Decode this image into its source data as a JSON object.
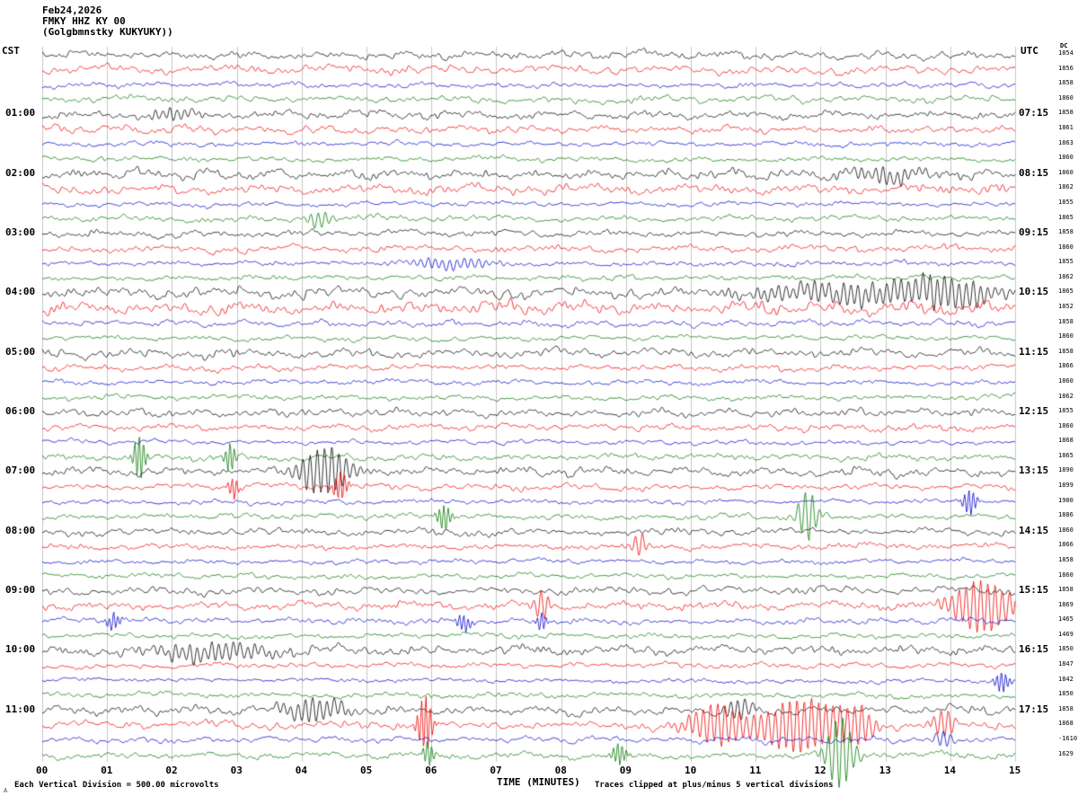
{
  "header": {
    "date": "Feb24,2026",
    "station": "FMKY HHZ KY 00",
    "location": "(Golgbmnstky KUKYUKY))"
  },
  "axis": {
    "left_timezone": "CST",
    "right_timezone": "UTC",
    "x_label": "TIME (MINUTES)",
    "x_ticks": [
      "00",
      "01",
      "02",
      "03",
      "04",
      "05",
      "06",
      "07",
      "08",
      "09",
      "10",
      "11",
      "12",
      "13",
      "14",
      "15"
    ],
    "dc_header": "DC"
  },
  "footer": {
    "scale_note": "Each Vertical Division =   500.00 microvolts",
    "clip_note": "Traces clipped at plus/minus 5 vertical divisions",
    "corner_mark": "A"
  },
  "chart_data": {
    "type": "line",
    "title": "FMKY HHZ KY 00 helicorder seismogram, Feb24,2026",
    "xlabel": "TIME (MINUTES)",
    "x_range": [
      0,
      15
    ],
    "rows": 48,
    "minutes_per_row": 15,
    "grid": "vertical gridline at every minute",
    "legend": "none",
    "trace_colors": [
      "#000000",
      "#ee0000",
      "#0000cc",
      "#007700"
    ],
    "clip_divisions": 5,
    "microvolts_per_division": 500.0,
    "left_labels": [
      {
        "row": 4,
        "label": "01:00"
      },
      {
        "row": 8,
        "label": "02:00"
      },
      {
        "row": 12,
        "label": "03:00"
      },
      {
        "row": 16,
        "label": "04:00"
      },
      {
        "row": 20,
        "label": "05:00"
      },
      {
        "row": 24,
        "label": "06:00"
      },
      {
        "row": 28,
        "label": "07:00"
      },
      {
        "row": 32,
        "label": "08:00"
      },
      {
        "row": 36,
        "label": "09:00"
      },
      {
        "row": 40,
        "label": "10:00"
      },
      {
        "row": 44,
        "label": "11:00"
      }
    ],
    "right_labels": [
      {
        "row": 4,
        "label": "07:15"
      },
      {
        "row": 8,
        "label": "08:15"
      },
      {
        "row": 12,
        "label": "09:15"
      },
      {
        "row": 16,
        "label": "10:15"
      },
      {
        "row": 20,
        "label": "11:15"
      },
      {
        "row": 24,
        "label": "12:15"
      },
      {
        "row": 28,
        "label": "13:15"
      },
      {
        "row": 32,
        "label": "14:15"
      },
      {
        "row": 36,
        "label": "15:15"
      },
      {
        "row": 40,
        "label": "16:15"
      },
      {
        "row": 44,
        "label": "17:15"
      }
    ],
    "dc_values": [
      "1854",
      "1856",
      "1858",
      "1860",
      "1858",
      "1861",
      "1863",
      "1860",
      "1860",
      "1862",
      "1855",
      "1865",
      "1858",
      "1860",
      "1855",
      "1862",
      "1865",
      "1852",
      "1858",
      "1860",
      "1858",
      "1866",
      "1860",
      "1862",
      "1855",
      "1860",
      "1868",
      "1865",
      "1890",
      "1899",
      "1900",
      "1886",
      "1860",
      "1866",
      "1858",
      "1860",
      "1858",
      "1869",
      "1465",
      "1469",
      "1850",
      "1847",
      "1842",
      "1850",
      "1858",
      "1868",
      "-1610",
      "1629"
    ],
    "row_amplitudes": [
      3,
      3.2,
      2,
      2.6,
      3,
      3,
      2,
      2,
      3.8,
      3.8,
      1.8,
      2.4,
      2.6,
      3,
      2,
      2,
      4.5,
      5,
      2.4,
      2,
      3.6,
      2.4,
      2,
      2,
      3,
      2.4,
      1.8,
      2.4,
      3.4,
      2.4,
      1.8,
      2.4,
      3,
      2.4,
      1.8,
      2,
      3,
      3,
      2.2,
      2,
      4,
      2.4,
      1.8,
      2,
      3.4,
      3.4,
      2.4,
      2.6
    ],
    "events": [
      {
        "row": 4,
        "m": 2.0,
        "amp": 6,
        "w": 0.3
      },
      {
        "row": 8,
        "m": 13.0,
        "amp": 8,
        "w": 0.4
      },
      {
        "row": 11,
        "m": 4.3,
        "amp": 9,
        "w": 0.15
      },
      {
        "row": 14,
        "m": 6.3,
        "amp": 6,
        "w": 0.5
      },
      {
        "row": 16,
        "m": 12.5,
        "amp": 10,
        "w": 1.2
      },
      {
        "row": 16,
        "m": 14.0,
        "amp": 12,
        "w": 0.5
      },
      {
        "row": 27,
        "m": 1.5,
        "amp": 24,
        "w": 0.07
      },
      {
        "row": 27,
        "m": 2.9,
        "amp": 16,
        "w": 0.06
      },
      {
        "row": 28,
        "m": 4.35,
        "amp": 26,
        "w": 0.3
      },
      {
        "row": 29,
        "m": 4.6,
        "amp": 16,
        "w": 0.08
      },
      {
        "row": 29,
        "m": 2.95,
        "amp": 12,
        "w": 0.06
      },
      {
        "row": 31,
        "m": 6.2,
        "amp": 14,
        "w": 0.08
      },
      {
        "row": 31,
        "m": 11.8,
        "amp": 26,
        "w": 0.12
      },
      {
        "row": 30,
        "m": 14.3,
        "amp": 14,
        "w": 0.08
      },
      {
        "row": 33,
        "m": 9.2,
        "amp": 12,
        "w": 0.1
      },
      {
        "row": 37,
        "m": 7.7,
        "amp": 15,
        "w": 0.1
      },
      {
        "row": 37,
        "m": 14.5,
        "amp": 28,
        "w": 0.35
      },
      {
        "row": 38,
        "m": 1.1,
        "amp": 9,
        "w": 0.08
      },
      {
        "row": 38,
        "m": 6.5,
        "amp": 10,
        "w": 0.08
      },
      {
        "row": 38,
        "m": 7.7,
        "amp": 10,
        "w": 0.06
      },
      {
        "row": 40,
        "m": 2.6,
        "amp": 9,
        "w": 0.7
      },
      {
        "row": 42,
        "m": 14.8,
        "amp": 12,
        "w": 0.08
      },
      {
        "row": 44,
        "m": 4.2,
        "amp": 13,
        "w": 0.35
      },
      {
        "row": 44,
        "m": 10.75,
        "amp": 12,
        "w": 0.15
      },
      {
        "row": 45,
        "m": 5.9,
        "amp": 32,
        "w": 0.08
      },
      {
        "row": 45,
        "m": 10.4,
        "amp": 22,
        "w": 0.3
      },
      {
        "row": 45,
        "m": 11.7,
        "amp": 30,
        "w": 0.45
      },
      {
        "row": 45,
        "m": 12.6,
        "amp": 18,
        "w": 0.2
      },
      {
        "row": 45,
        "m": 13.9,
        "amp": 16,
        "w": 0.12
      },
      {
        "row": 46,
        "m": 13.9,
        "amp": 10,
        "w": 0.1
      },
      {
        "row": 47,
        "m": 12.3,
        "amp": 40,
        "w": 0.15
      },
      {
        "row": 47,
        "m": 8.9,
        "amp": 12,
        "w": 0.08
      },
      {
        "row": 47,
        "m": 5.95,
        "amp": 14,
        "w": 0.06
      }
    ]
  }
}
